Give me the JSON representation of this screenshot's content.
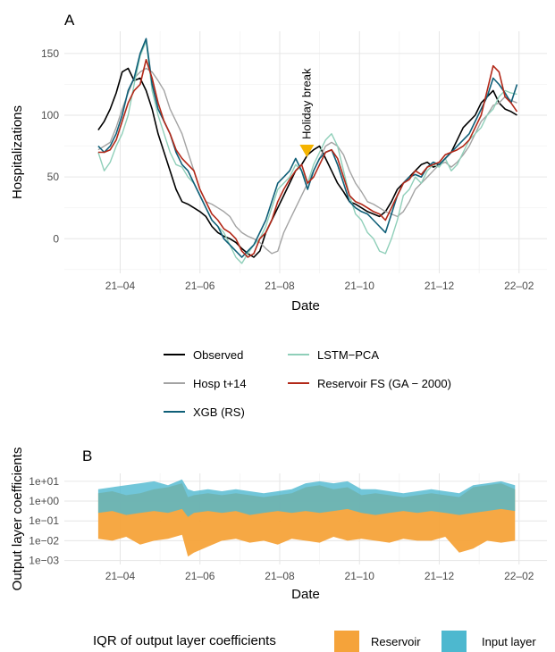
{
  "panel_a_tag": "A",
  "panel_b_tag": "B",
  "chart_data": [
    {
      "type": "line",
      "panel": "A",
      "xlabel": "Date",
      "ylabel": "Hospitalizations",
      "x_ticks": [
        "21–04",
        "21–06",
        "21–08",
        "21–10",
        "21–12",
        "22–02"
      ],
      "x_tick_months": [
        3,
        5,
        7,
        9,
        11,
        13
      ],
      "x_range_months": [
        1.6,
        13.7
      ],
      "ylim": [
        -28,
        168
      ],
      "y_ticks": [
        0,
        50,
        100,
        150
      ],
      "grid": true,
      "annotation": {
        "text": "Holiday break",
        "x_month": 7.68,
        "y": 66,
        "color": "#f5b400"
      },
      "x_months": [
        2.45,
        2.6,
        2.75,
        2.9,
        3.05,
        3.2,
        3.35,
        3.5,
        3.65,
        3.8,
        3.95,
        4.1,
        4.25,
        4.4,
        4.55,
        4.7,
        4.85,
        5.0,
        5.15,
        5.3,
        5.45,
        5.6,
        5.75,
        5.9,
        6.05,
        6.2,
        6.35,
        6.5,
        6.65,
        6.8,
        6.95,
        7.1,
        7.25,
        7.4,
        7.55,
        7.7,
        7.85,
        8.0,
        8.15,
        8.3,
        8.45,
        8.6,
        8.75,
        8.9,
        9.05,
        9.2,
        9.35,
        9.5,
        9.65,
        9.8,
        9.95,
        10.1,
        10.25,
        10.4,
        10.55,
        10.7,
        10.85,
        11.0,
        11.15,
        11.3,
        11.45,
        11.6,
        11.75,
        11.9,
        12.05,
        12.2,
        12.35,
        12.5,
        12.65,
        12.8,
        12.95
      ],
      "series": [
        {
          "name": "Observed",
          "color": "#000000",
          "width": 1.6,
          "values": [
            88,
            95,
            105,
            118,
            135,
            138,
            128,
            130,
            120,
            105,
            85,
            70,
            55,
            40,
            30,
            28,
            25,
            22,
            18,
            10,
            5,
            2,
            0,
            -3,
            -8,
            -12,
            -15,
            -10,
            5,
            15,
            25,
            35,
            45,
            55,
            60,
            68,
            72,
            75,
            65,
            55,
            45,
            38,
            30,
            28,
            25,
            22,
            20,
            18,
            22,
            30,
            40,
            45,
            50,
            55,
            60,
            62,
            58,
            60,
            65,
            70,
            80,
            90,
            95,
            100,
            110,
            115,
            120,
            110,
            105,
            103,
            100
          ]
        },
        {
          "name": "LSTM−PCA",
          "color": "#8fcfb9",
          "width": 1.4,
          "values": [
            70,
            55,
            62,
            75,
            85,
            100,
            125,
            148,
            160,
            120,
            100,
            85,
            70,
            60,
            58,
            50,
            45,
            35,
            25,
            15,
            10,
            5,
            -5,
            -15,
            -20,
            -12,
            -5,
            0,
            10,
            25,
            40,
            45,
            50,
            60,
            55,
            45,
            60,
            70,
            80,
            85,
            75,
            55,
            35,
            20,
            15,
            5,
            0,
            -10,
            -12,
            0,
            15,
            35,
            40,
            50,
            45,
            55,
            60,
            58,
            65,
            55,
            60,
            70,
            80,
            85,
            90,
            100,
            105,
            115,
            120,
            118,
            117
          ]
        },
        {
          "name": "Hosp t+14",
          "color": "#a3a3a3",
          "width": 1.4,
          "values": [
            72,
            75,
            78,
            90,
            105,
            118,
            130,
            135,
            138,
            135,
            128,
            120,
            105,
            95,
            85,
            70,
            55,
            40,
            30,
            28,
            25,
            22,
            18,
            10,
            5,
            2,
            0,
            -3,
            -8,
            -12,
            -10,
            5,
            15,
            25,
            35,
            45,
            55,
            65,
            75,
            78,
            75,
            68,
            55,
            45,
            38,
            30,
            28,
            25,
            22,
            20,
            18,
            22,
            30,
            40,
            45,
            50,
            55,
            60,
            62,
            58,
            62,
            68,
            75,
            85,
            95,
            100,
            108,
            110,
            115,
            112,
            110
          ]
        },
        {
          "name": "Reservoir FS (GA − 2000)",
          "color": "#b22818",
          "width": 1.6,
          "values": [
            70,
            70,
            72,
            80,
            95,
            110,
            120,
            125,
            145,
            130,
            110,
            95,
            85,
            72,
            65,
            60,
            55,
            40,
            30,
            20,
            15,
            8,
            5,
            0,
            -10,
            -15,
            -12,
            0,
            5,
            15,
            30,
            40,
            48,
            55,
            60,
            45,
            50,
            60,
            70,
            72,
            65,
            50,
            35,
            30,
            28,
            25,
            22,
            20,
            15,
            25,
            35,
            45,
            48,
            55,
            52,
            58,
            60,
            62,
            68,
            70,
            72,
            75,
            80,
            90,
            100,
            120,
            140,
            135,
            115,
            110,
            103
          ]
        },
        {
          "name": "XGB (RS)",
          "color": "#0f5f78",
          "width": 1.6,
          "values": [
            75,
            70,
            75,
            85,
            100,
            120,
            130,
            150,
            162,
            125,
            105,
            95,
            85,
            70,
            60,
            55,
            45,
            35,
            25,
            15,
            10,
            0,
            -5,
            -10,
            -15,
            -10,
            -5,
            5,
            15,
            30,
            45,
            50,
            55,
            65,
            55,
            40,
            55,
            65,
            70,
            72,
            60,
            45,
            30,
            25,
            22,
            20,
            15,
            10,
            5,
            20,
            35,
            45,
            50,
            52,
            50,
            58,
            62,
            60,
            65,
            70,
            75,
            80,
            85,
            95,
            105,
            115,
            130,
            125,
            118,
            110,
            125
          ]
        }
      ],
      "legend": {
        "position": "bottom",
        "entries": [
          {
            "label": "Observed",
            "color": "#000000"
          },
          {
            "label": "LSTM−PCA",
            "color": "#8fcfb9"
          },
          {
            "label": "Hosp t+14",
            "color": "#a3a3a3"
          },
          {
            "label": "Reservoir FS (GA − 2000)",
            "color": "#b22818"
          },
          {
            "label": "XGB (RS)",
            "color": "#0f5f78"
          }
        ]
      }
    },
    {
      "type": "area",
      "panel": "B",
      "xlabel": "Date",
      "ylabel": "Output layer coefficients",
      "y_scale": "log10",
      "ylim_exponent": [
        -3.2,
        1.4
      ],
      "y_ticks": [
        "1e+01",
        "1e+00",
        "1e−01",
        "1e−02",
        "1e−03"
      ],
      "y_tick_exponents": [
        1,
        0,
        -1,
        -2,
        -3
      ],
      "x_ticks": [
        "21–04",
        "21–06",
        "21–08",
        "21–10",
        "21–12",
        "22–02"
      ],
      "x_tick_months": [
        3,
        5,
        7,
        9,
        11,
        13
      ],
      "x_range_months": [
        1.6,
        13.7
      ],
      "grid": true,
      "x_months": [
        2.45,
        2.8,
        3.15,
        3.5,
        3.85,
        4.2,
        4.55,
        4.7,
        4.85,
        5.2,
        5.55,
        5.9,
        6.25,
        6.6,
        6.95,
        7.3,
        7.65,
        8.0,
        8.35,
        8.7,
        9.05,
        9.4,
        9.75,
        10.1,
        10.45,
        10.8,
        11.15,
        11.5,
        11.85,
        12.2,
        12.55,
        12.9
      ],
      "series": [
        {
          "name": "Input layer",
          "color": "#4db8cf",
          "lower_exp": [
            -0.6,
            -0.5,
            -0.7,
            -0.6,
            -0.5,
            -0.6,
            -0.4,
            -0.8,
            -0.6,
            -0.5,
            -0.6,
            -0.5,
            -0.7,
            -0.6,
            -0.5,
            -0.6,
            -0.5,
            -0.6,
            -0.5,
            -0.4,
            -0.6,
            -0.7,
            -0.6,
            -0.5,
            -0.6,
            -0.5,
            -0.6,
            -0.7,
            -0.6,
            -0.5,
            -0.4,
            -0.5
          ],
          "upper_exp": [
            0.6,
            0.7,
            0.8,
            0.9,
            1.0,
            0.8,
            1.1,
            0.6,
            0.5,
            0.6,
            0.5,
            0.6,
            0.5,
            0.4,
            0.5,
            0.6,
            0.9,
            1.0,
            0.9,
            1.0,
            0.6,
            0.6,
            0.5,
            0.4,
            0.5,
            0.6,
            0.5,
            0.4,
            0.8,
            0.9,
            1.0,
            0.8
          ]
        },
        {
          "name": "Reservoir",
          "color": "#f5a33a",
          "lower_exp": [
            -1.9,
            -2.0,
            -1.8,
            -2.2,
            -2.0,
            -1.9,
            -1.7,
            -2.8,
            -2.6,
            -2.3,
            -2.0,
            -1.9,
            -2.1,
            -2.0,
            -2.2,
            -1.9,
            -2.0,
            -2.1,
            -1.8,
            -2.0,
            -1.9,
            -2.0,
            -2.1,
            -1.9,
            -2.0,
            -2.0,
            -1.8,
            -2.6,
            -2.4,
            -2.0,
            -2.1,
            -2.0
          ],
          "upper_exp": [
            0.4,
            0.5,
            0.3,
            0.4,
            0.6,
            0.7,
            0.9,
            0.2,
            0.3,
            0.4,
            0.3,
            0.4,
            0.3,
            0.2,
            0.3,
            0.4,
            0.7,
            0.8,
            0.6,
            0.7,
            0.3,
            0.4,
            0.3,
            0.2,
            0.3,
            0.4,
            0.3,
            0.2,
            0.7,
            0.8,
            0.9,
            0.6
          ]
        }
      ],
      "legend": {
        "position": "bottom",
        "title": "IQR of output layer coefficients",
        "entries": [
          {
            "label": "Reservoir",
            "color": "#f5a33a"
          },
          {
            "label": "Input layer",
            "color": "#4db8cf"
          }
        ]
      }
    }
  ]
}
